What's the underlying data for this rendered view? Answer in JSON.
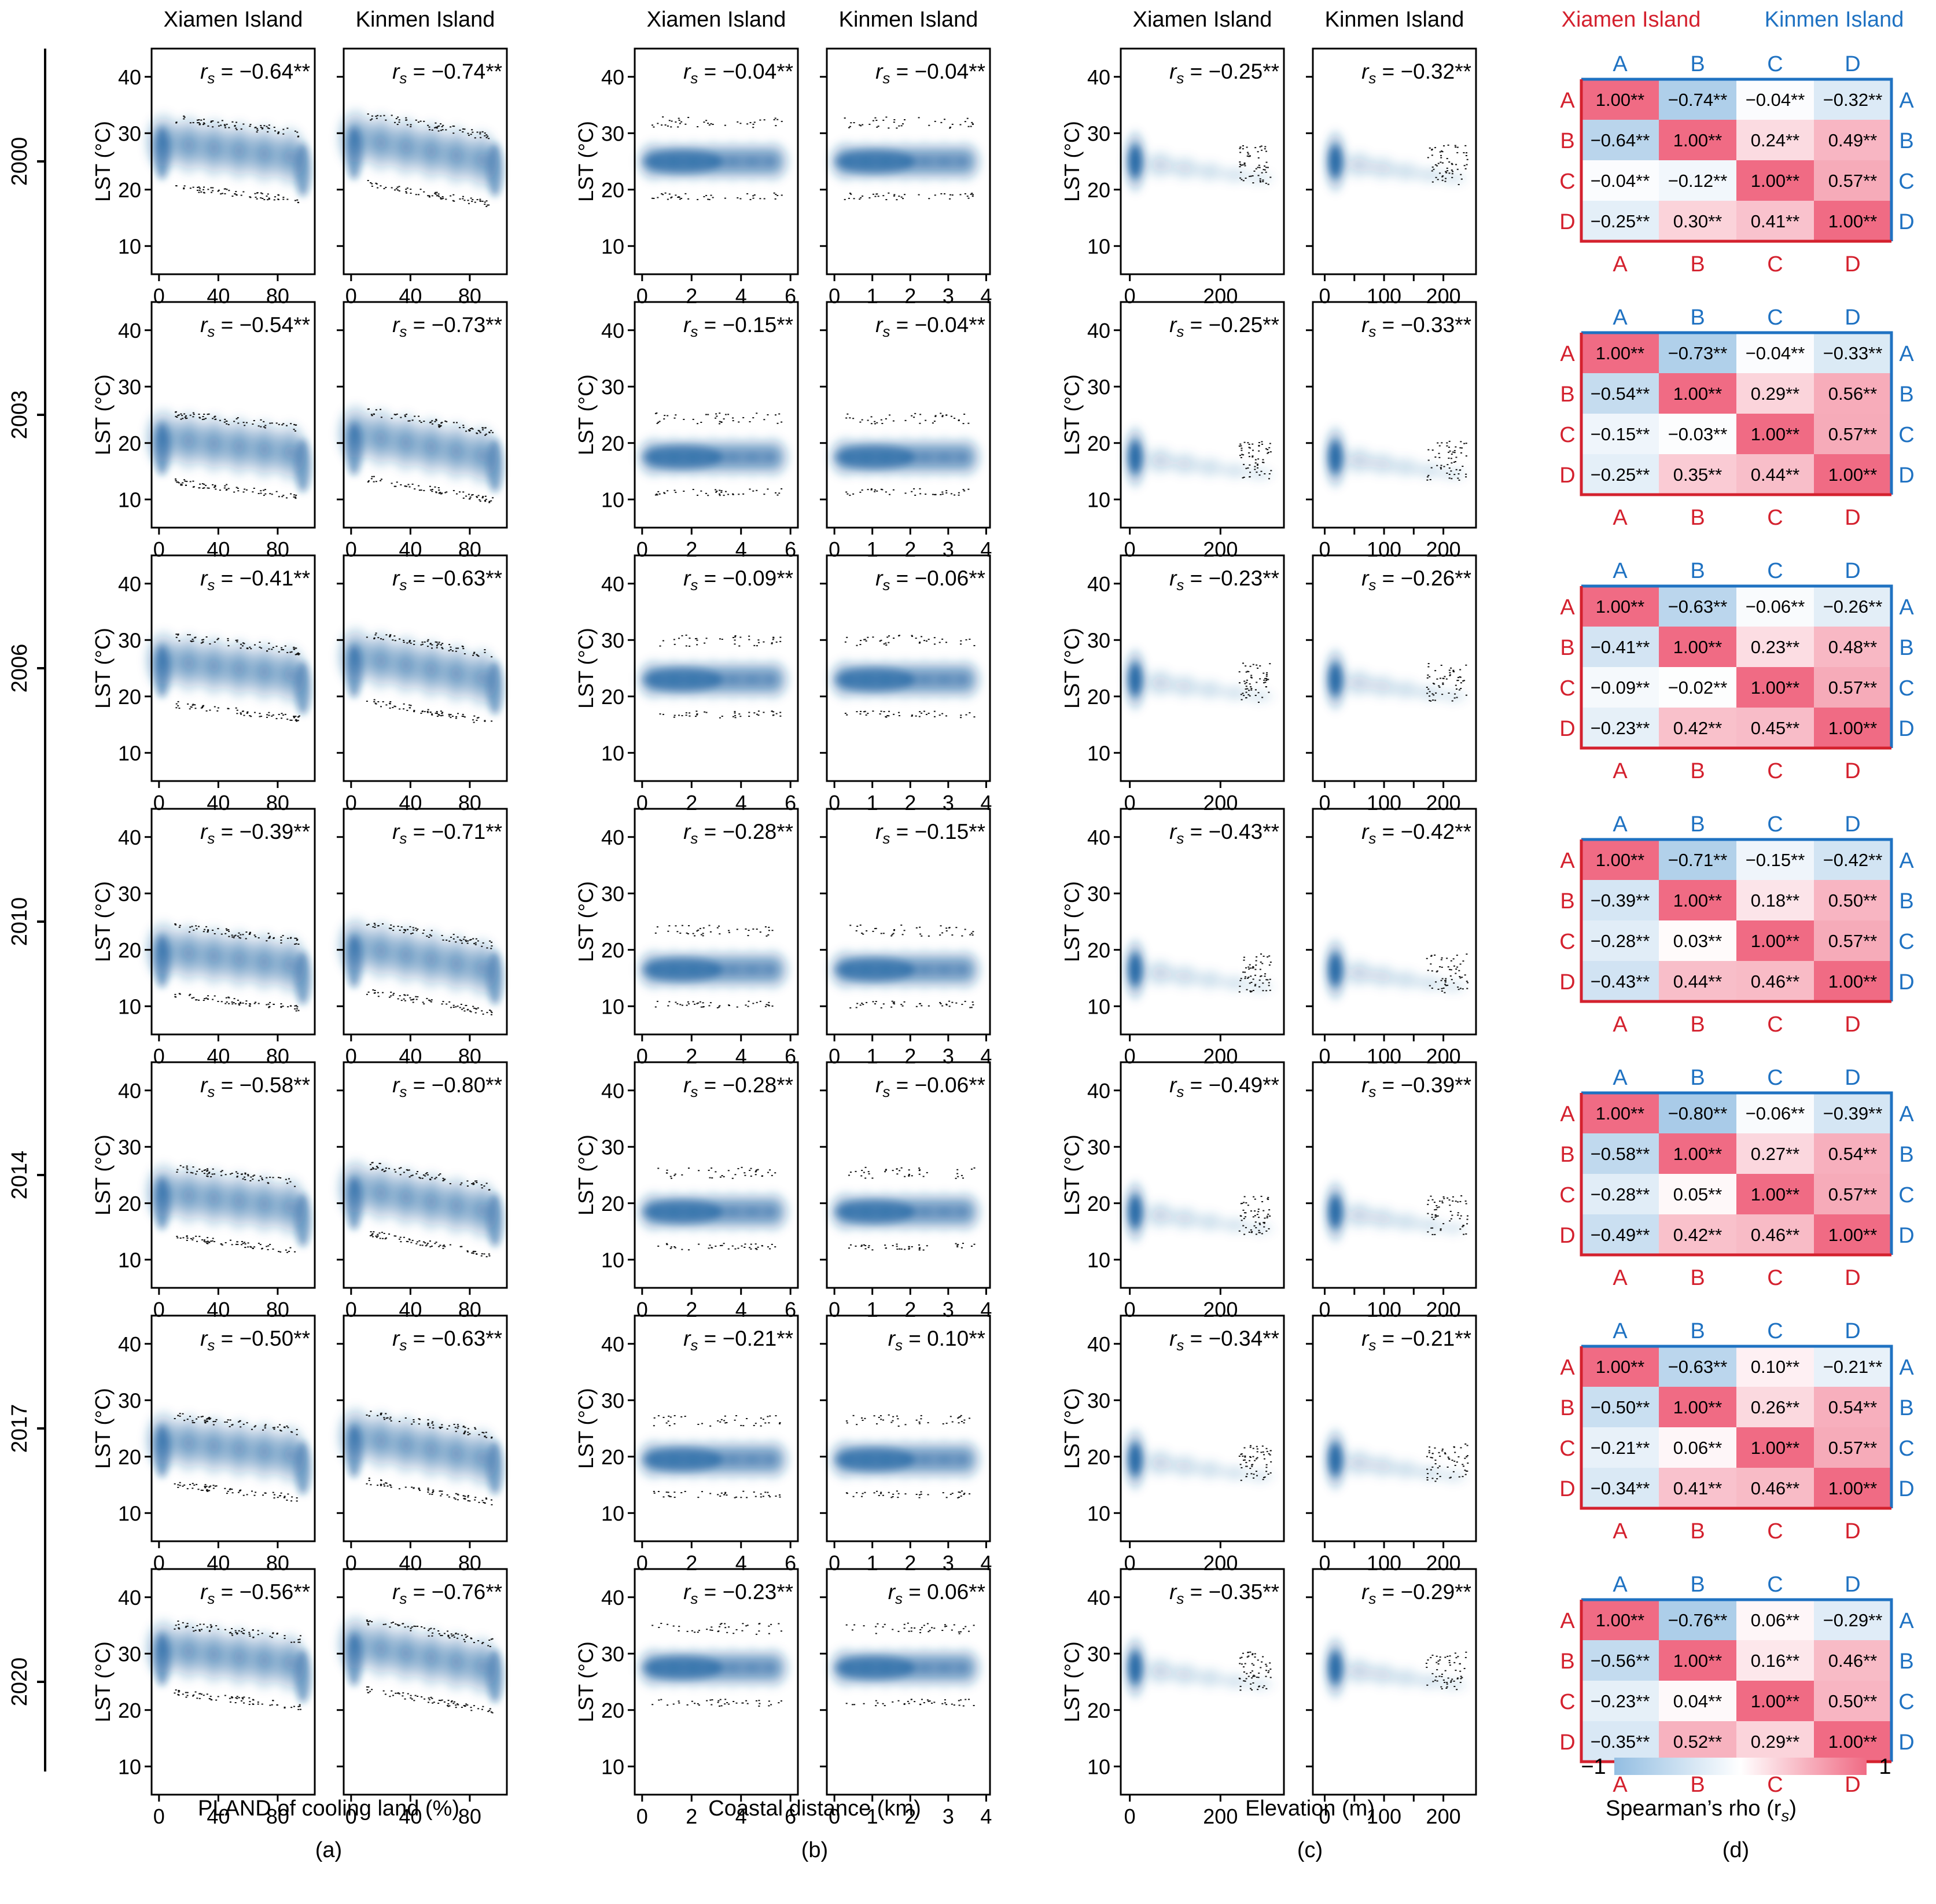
{
  "figure": {
    "island_labels": {
      "xiamen": "Xiamen Island",
      "kinmen": "Kinmen Island"
    },
    "ylabel": "LST (°C)",
    "years": [
      "2000",
      "2003",
      "2006",
      "2010",
      "2014",
      "2017",
      "2020"
    ],
    "panel_letters": [
      "(a)",
      "(b)",
      "(c)",
      "(d)"
    ],
    "colors": {
      "xiamen": "#d4212e",
      "kinmen": "#1f72c2",
      "kde": "#1a5fa0",
      "axis": "#000000"
    }
  },
  "chart_data": [
    {
      "id": "a",
      "type": "scatter",
      "title": "(a)",
      "xlabel": "PLAND of cooling land (%)",
      "ylabel": "LST (°C)",
      "xiamen": {
        "xlim": [
          -5,
          105
        ],
        "xticks": [
          0,
          40,
          80
        ],
        "rs": [
          "−0.64**",
          "−0.54**",
          "−0.41**",
          "−0.39**",
          "−0.58**",
          "−0.50**",
          "−0.56**"
        ]
      },
      "kinmen": {
        "xlim": [
          -5,
          105
        ],
        "xticks": [
          0,
          40,
          80
        ],
        "rs": [
          "−0.74**",
          "−0.73**",
          "−0.63**",
          "−0.71**",
          "−0.80**",
          "−0.63**",
          "−0.76**"
        ]
      },
      "ylim": [
        5,
        45
      ],
      "yticks": [
        10,
        20,
        30,
        40
      ]
    },
    {
      "id": "b",
      "type": "scatter",
      "title": "(b)",
      "xlabel": "Coastal distance (km)",
      "ylabel": "LST (°C)",
      "xiamen": {
        "xlim": [
          -0.3,
          6.3
        ],
        "xticks": [
          0,
          2,
          4,
          6
        ],
        "rs": [
          "−0.04**",
          "−0.15**",
          "−0.09**",
          "−0.28**",
          "−0.28**",
          "−0.21**",
          "−0.23**"
        ]
      },
      "kinmen": {
        "xlim": [
          -0.2,
          4.1
        ],
        "xticks": [
          0,
          1,
          2,
          3,
          4
        ],
        "rs": [
          "−0.04**",
          "−0.04**",
          "−0.06**",
          "−0.15**",
          "−0.06**",
          "0.10**",
          "0.06**"
        ]
      },
      "ylim": [
        5,
        45
      ],
      "yticks": [
        10,
        20,
        30,
        40
      ]
    },
    {
      "id": "c",
      "type": "scatter",
      "title": "(c)",
      "xlabel": "Elevation (m)",
      "ylabel": "LST (°C)",
      "xiamen": {
        "xlim": [
          -20,
          340
        ],
        "xticks": [
          0,
          200
        ],
        "rs": [
          "−0.25**",
          "−0.25**",
          "−0.23**",
          "−0.43**",
          "−0.49**",
          "−0.34**",
          "−0.35**"
        ]
      },
      "kinmen": {
        "xlim": [
          -20,
          255
        ],
        "xticks": [
          0,
          50,
          100,
          150,
          200
        ],
        "xticklabels": [
          "0",
          "",
          "100",
          "",
          "200"
        ],
        "rs": [
          "−0.32**",
          "−0.33**",
          "−0.26**",
          "−0.42**",
          "−0.39**",
          "−0.21**",
          "−0.29**"
        ]
      },
      "ylim": [
        5,
        45
      ],
      "yticks": [
        10,
        20,
        30,
        40
      ]
    },
    {
      "id": "d",
      "type": "heatmap",
      "title": "(d)",
      "xlabel": "Spearman’s rho (r",
      "xlabel_sub": "s",
      "xlabel_end": ")",
      "variables": [
        "A",
        "B",
        "C",
        "D"
      ],
      "colorbar": {
        "min": -1,
        "max": 1,
        "min_label": "−1",
        "max_label": "1"
      },
      "matrices": [
        {
          "values": [
            [
              1.0,
              -0.74,
              -0.04,
              -0.32
            ],
            [
              -0.64,
              1.0,
              0.24,
              0.49
            ],
            [
              -0.04,
              -0.12,
              1.0,
              0.57
            ],
            [
              -0.25,
              0.3,
              0.41,
              1.0
            ]
          ],
          "labels": [
            [
              "1.00**",
              "−0.74**",
              "−0.04**",
              "−0.32**"
            ],
            [
              "−0.64**",
              "1.00**",
              "0.24**",
              "0.49**"
            ],
            [
              "−0.04**",
              "−0.12**",
              "1.00**",
              "0.57**"
            ],
            [
              "−0.25**",
              "0.30**",
              "0.41**",
              "1.00**"
            ]
          ]
        },
        {
          "values": [
            [
              1.0,
              -0.73,
              -0.04,
              -0.33
            ],
            [
              -0.54,
              1.0,
              0.29,
              0.56
            ],
            [
              -0.15,
              -0.03,
              1.0,
              0.57
            ],
            [
              -0.25,
              0.35,
              0.44,
              1.0
            ]
          ],
          "labels": [
            [
              "1.00**",
              "−0.73**",
              "−0.04**",
              "−0.33**"
            ],
            [
              "−0.54**",
              "1.00**",
              "0.29**",
              "0.56**"
            ],
            [
              "−0.15**",
              "−0.03**",
              "1.00**",
              "0.57**"
            ],
            [
              "−0.25**",
              "0.35**",
              "0.44**",
              "1.00**"
            ]
          ]
        },
        {
          "values": [
            [
              1.0,
              -0.63,
              -0.06,
              -0.26
            ],
            [
              -0.41,
              1.0,
              0.23,
              0.48
            ],
            [
              -0.09,
              -0.02,
              1.0,
              0.57
            ],
            [
              -0.23,
              0.42,
              0.45,
              1.0
            ]
          ],
          "labels": [
            [
              "1.00**",
              "−0.63**",
              "−0.06**",
              "−0.26**"
            ],
            [
              "−0.41**",
              "1.00**",
              "0.23**",
              "0.48**"
            ],
            [
              "−0.09**",
              "−0.02**",
              "1.00**",
              "0.57**"
            ],
            [
              "−0.23**",
              "0.42**",
              "0.45**",
              "1.00**"
            ]
          ]
        },
        {
          "values": [
            [
              1.0,
              -0.71,
              -0.15,
              -0.42
            ],
            [
              -0.39,
              1.0,
              0.18,
              0.5
            ],
            [
              -0.28,
              0.03,
              1.0,
              0.57
            ],
            [
              -0.43,
              0.44,
              0.46,
              1.0
            ]
          ],
          "labels": [
            [
              "1.00**",
              "−0.71**",
              "−0.15**",
              "−0.42**"
            ],
            [
              "−0.39**",
              "1.00**",
              "0.18**",
              "0.50**"
            ],
            [
              "−0.28**",
              "0.03**",
              "1.00**",
              "0.57**"
            ],
            [
              "−0.43**",
              "0.44**",
              "0.46**",
              "1.00**"
            ]
          ]
        },
        {
          "values": [
            [
              1.0,
              -0.8,
              -0.06,
              -0.39
            ],
            [
              -0.58,
              1.0,
              0.27,
              0.54
            ],
            [
              -0.28,
              0.05,
              1.0,
              0.57
            ],
            [
              -0.49,
              0.42,
              0.46,
              1.0
            ]
          ],
          "labels": [
            [
              "1.00**",
              "−0.80**",
              "−0.06**",
              "−0.39**"
            ],
            [
              "−0.58**",
              "1.00**",
              "0.27**",
              "0.54**"
            ],
            [
              "−0.28**",
              "0.05**",
              "1.00**",
              "0.57**"
            ],
            [
              "−0.49**",
              "0.42**",
              "0.46**",
              "1.00**"
            ]
          ]
        },
        {
          "values": [
            [
              1.0,
              -0.63,
              0.1,
              -0.21
            ],
            [
              -0.5,
              1.0,
              0.26,
              0.54
            ],
            [
              -0.21,
              0.06,
              1.0,
              0.57
            ],
            [
              -0.34,
              0.41,
              0.46,
              1.0
            ]
          ],
          "labels": [
            [
              "1.00**",
              "−0.63**",
              "0.10**",
              "−0.21**"
            ],
            [
              "−0.50**",
              "1.00**",
              "0.26**",
              "0.54**"
            ],
            [
              "−0.21**",
              "0.06**",
              "1.00**",
              "0.57**"
            ],
            [
              "−0.34**",
              "0.41**",
              "0.46**",
              "1.00**"
            ]
          ]
        },
        {
          "values": [
            [
              1.0,
              -0.76,
              0.06,
              -0.29
            ],
            [
              -0.56,
              1.0,
              0.16,
              0.46
            ],
            [
              -0.23,
              0.04,
              1.0,
              0.5
            ],
            [
              -0.35,
              0.52,
              0.29,
              1.0
            ]
          ],
          "labels": [
            [
              "1.00**",
              "−0.76**",
              "0.06**",
              "−0.29**"
            ],
            [
              "−0.56**",
              "1.00**",
              "0.16**",
              "0.46**"
            ],
            [
              "−0.23**",
              "0.04**",
              "1.00**",
              "0.50**"
            ],
            [
              "−0.35**",
              "0.52**",
              "0.29**",
              "1.00**"
            ]
          ]
        }
      ]
    }
  ]
}
